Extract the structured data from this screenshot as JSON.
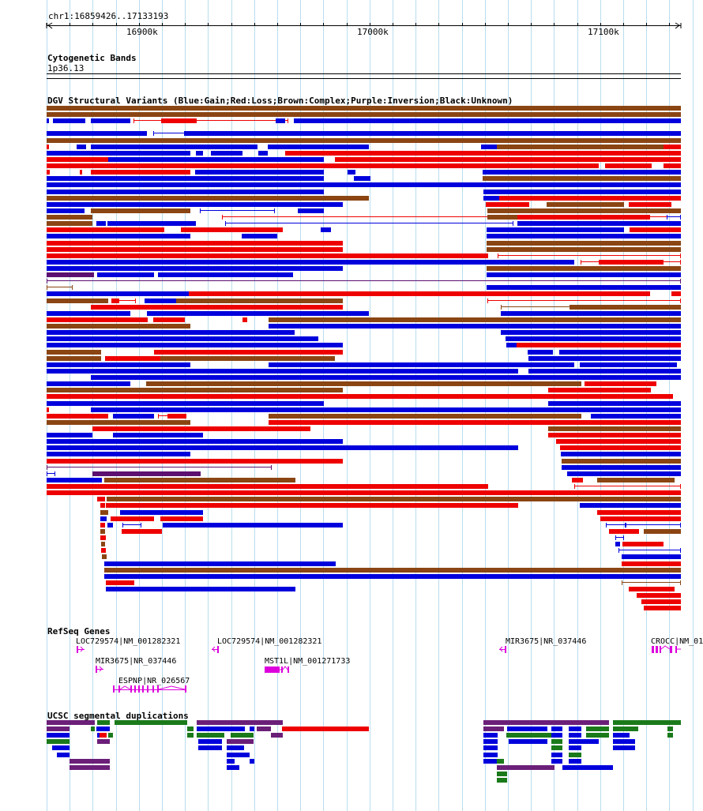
{
  "coordinates": "chr1:16859426..17133193",
  "ruler": {
    "ticks": [
      "16900k",
      "17000k",
      "17100k"
    ]
  },
  "tracks": {
    "cytoband": {
      "title": "Cytogenetic Bands",
      "band": "1p36.13"
    },
    "dgv": {
      "title": "DGV Structural Variants (Blue:Gain;Red:Loss;Brown:Complex;Purple:Inversion;Black:Unknown)"
    },
    "refseq": {
      "title": "RefSeq Genes",
      "genes": [
        {
          "label": "LOC729574|NM_001282321"
        },
        {
          "label": "LOC729574|NM_001282321"
        },
        {
          "label": "MIR3675|NR_037446"
        },
        {
          "label": "CROCC|NM_01"
        },
        {
          "label": "MIR3675|NR_037446"
        },
        {
          "label": "MST1L|NM_001271733"
        },
        {
          "label": "ESPNP|NR_026567"
        }
      ]
    },
    "segdup": {
      "title": "UCSC segmental duplications"
    }
  },
  "legend_colors": {
    "gain": "#0000dd",
    "loss": "#ee0000",
    "complex": "#8b4513",
    "inversion": "#5c1070",
    "unknown": "#000000"
  },
  "segdup_colors": {
    "purple": "#6b1f78",
    "green": "#1a7a1a",
    "blue": "#0000dd",
    "red": "#ee0000"
  },
  "gene_color": "#dd00dd"
}
